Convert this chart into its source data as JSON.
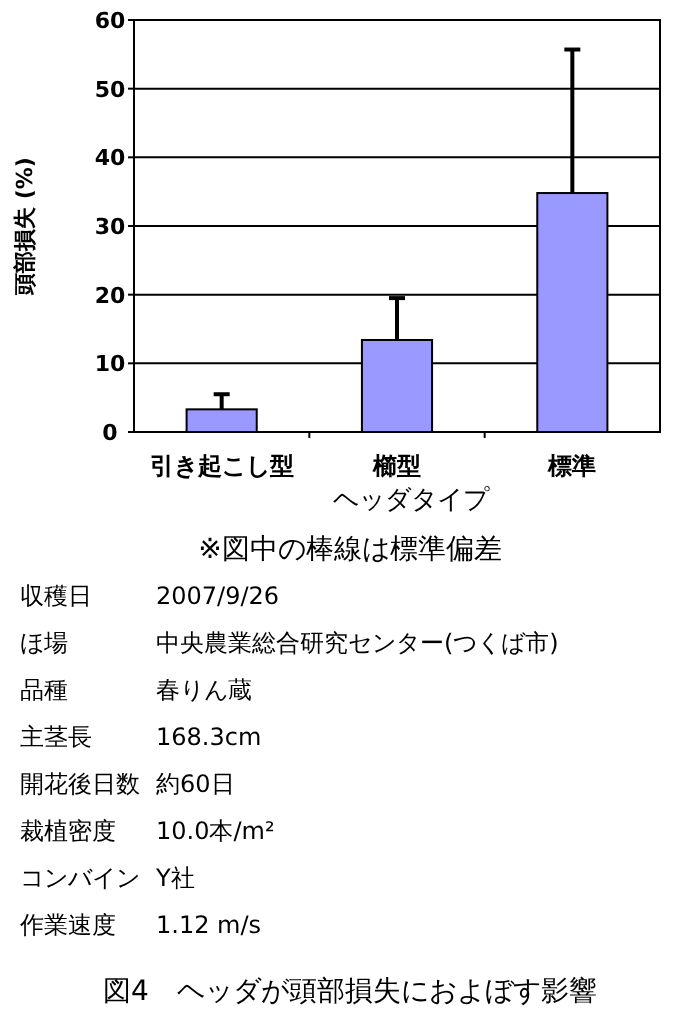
{
  "chart_data": {
    "type": "bar",
    "title": "図4　ヘッダが頭部損失におよぼす影響",
    "xlabel": "ヘッダタイプ",
    "ylabel": "頭部損失 (%)",
    "categories": [
      "引き起こし型",
      "櫛型",
      "標準"
    ],
    "values": [
      3.3,
      13.4,
      34.8
    ],
    "errors": [
      [
        3.3,
        5.5
      ],
      [
        13.4,
        19.5
      ],
      [
        34.8,
        55.7
      ]
    ],
    "color": "#9999ff",
    "ylim": [
      0,
      60
    ],
    "yticks": [
      0,
      10,
      20,
      30,
      40,
      50,
      60
    ],
    "grid": "y",
    "annotations": [
      "※図中の棒線は標準偏差",
      "収穫日 2007/9/26",
      "ほ場 中央農業総合研究センター(つくば市)",
      "品種 春りん蔵",
      "主茎長 168.3cm",
      "開花後日数 約60日",
      "裁植密度 10.0本/m²",
      "コンバイン Y社",
      "作業速度 1.12 m/s"
    ]
  }
}
